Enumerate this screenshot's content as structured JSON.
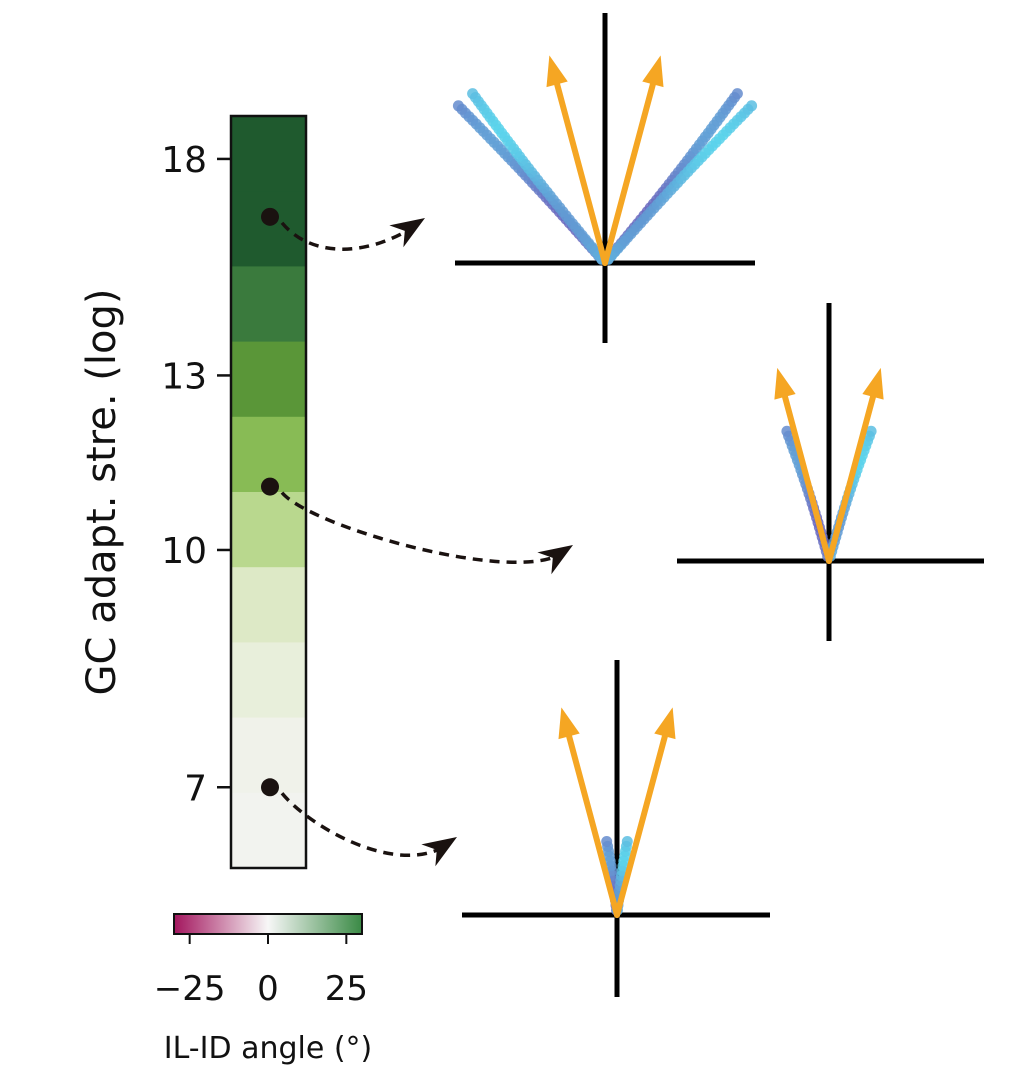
{
  "chart_data": [
    {
      "type": "heatmap",
      "ylabel": "GC adapt. stre. (log)",
      "yticks": [
        "18",
        "13",
        "10",
        "7"
      ],
      "yscale": "log",
      "ylim": [
        6.2,
        19.2
      ],
      "cell_colors": [
        "#1f5a2e",
        "#1f5a2e",
        "#3a7a3d",
        "#5a9638",
        "#88bb55",
        "#b9d88e",
        "#dde9c6",
        "#e8efdb",
        "#f0f2ea",
        "#f2f3ef"
      ],
      "markers": [
        {
          "y": 16.5,
          "target": "top-panel"
        },
        {
          "y": 11.0,
          "target": "middle-panel"
        },
        {
          "y": 7.0,
          "target": "bottom-panel"
        }
      ],
      "colorbar": {
        "label": "IL-ID angle (°)",
        "ticks": [
          "−25",
          "0",
          "25"
        ],
        "range": [
          -30,
          30
        ],
        "colors": [
          "#a3165e",
          "#f7f7f7",
          "#3a8a45"
        ]
      }
    },
    {
      "type": "vector-panels",
      "panels": [
        {
          "name": "top-panel",
          "arrow_angles_deg": [
            -15,
            15
          ],
          "trace_angles_deg": [
            -43,
            -38,
            38,
            43
          ],
          "trace_extent": 1.0
        },
        {
          "name": "middle-panel",
          "arrow_angles_deg": [
            -15,
            15
          ],
          "trace_angles_deg": [
            -18,
            18
          ],
          "trace_extent": 0.62
        },
        {
          "name": "bottom-panel",
          "arrow_angles_deg": [
            -15,
            15
          ],
          "trace_angles_deg": [
            -8,
            8
          ],
          "trace_extent": 0.33
        }
      ],
      "colors": {
        "arrow": "#f5a623",
        "trace_light": "#5bc7e6",
        "trace_dark": "#6d57b8",
        "axis": "#000000"
      }
    }
  ]
}
